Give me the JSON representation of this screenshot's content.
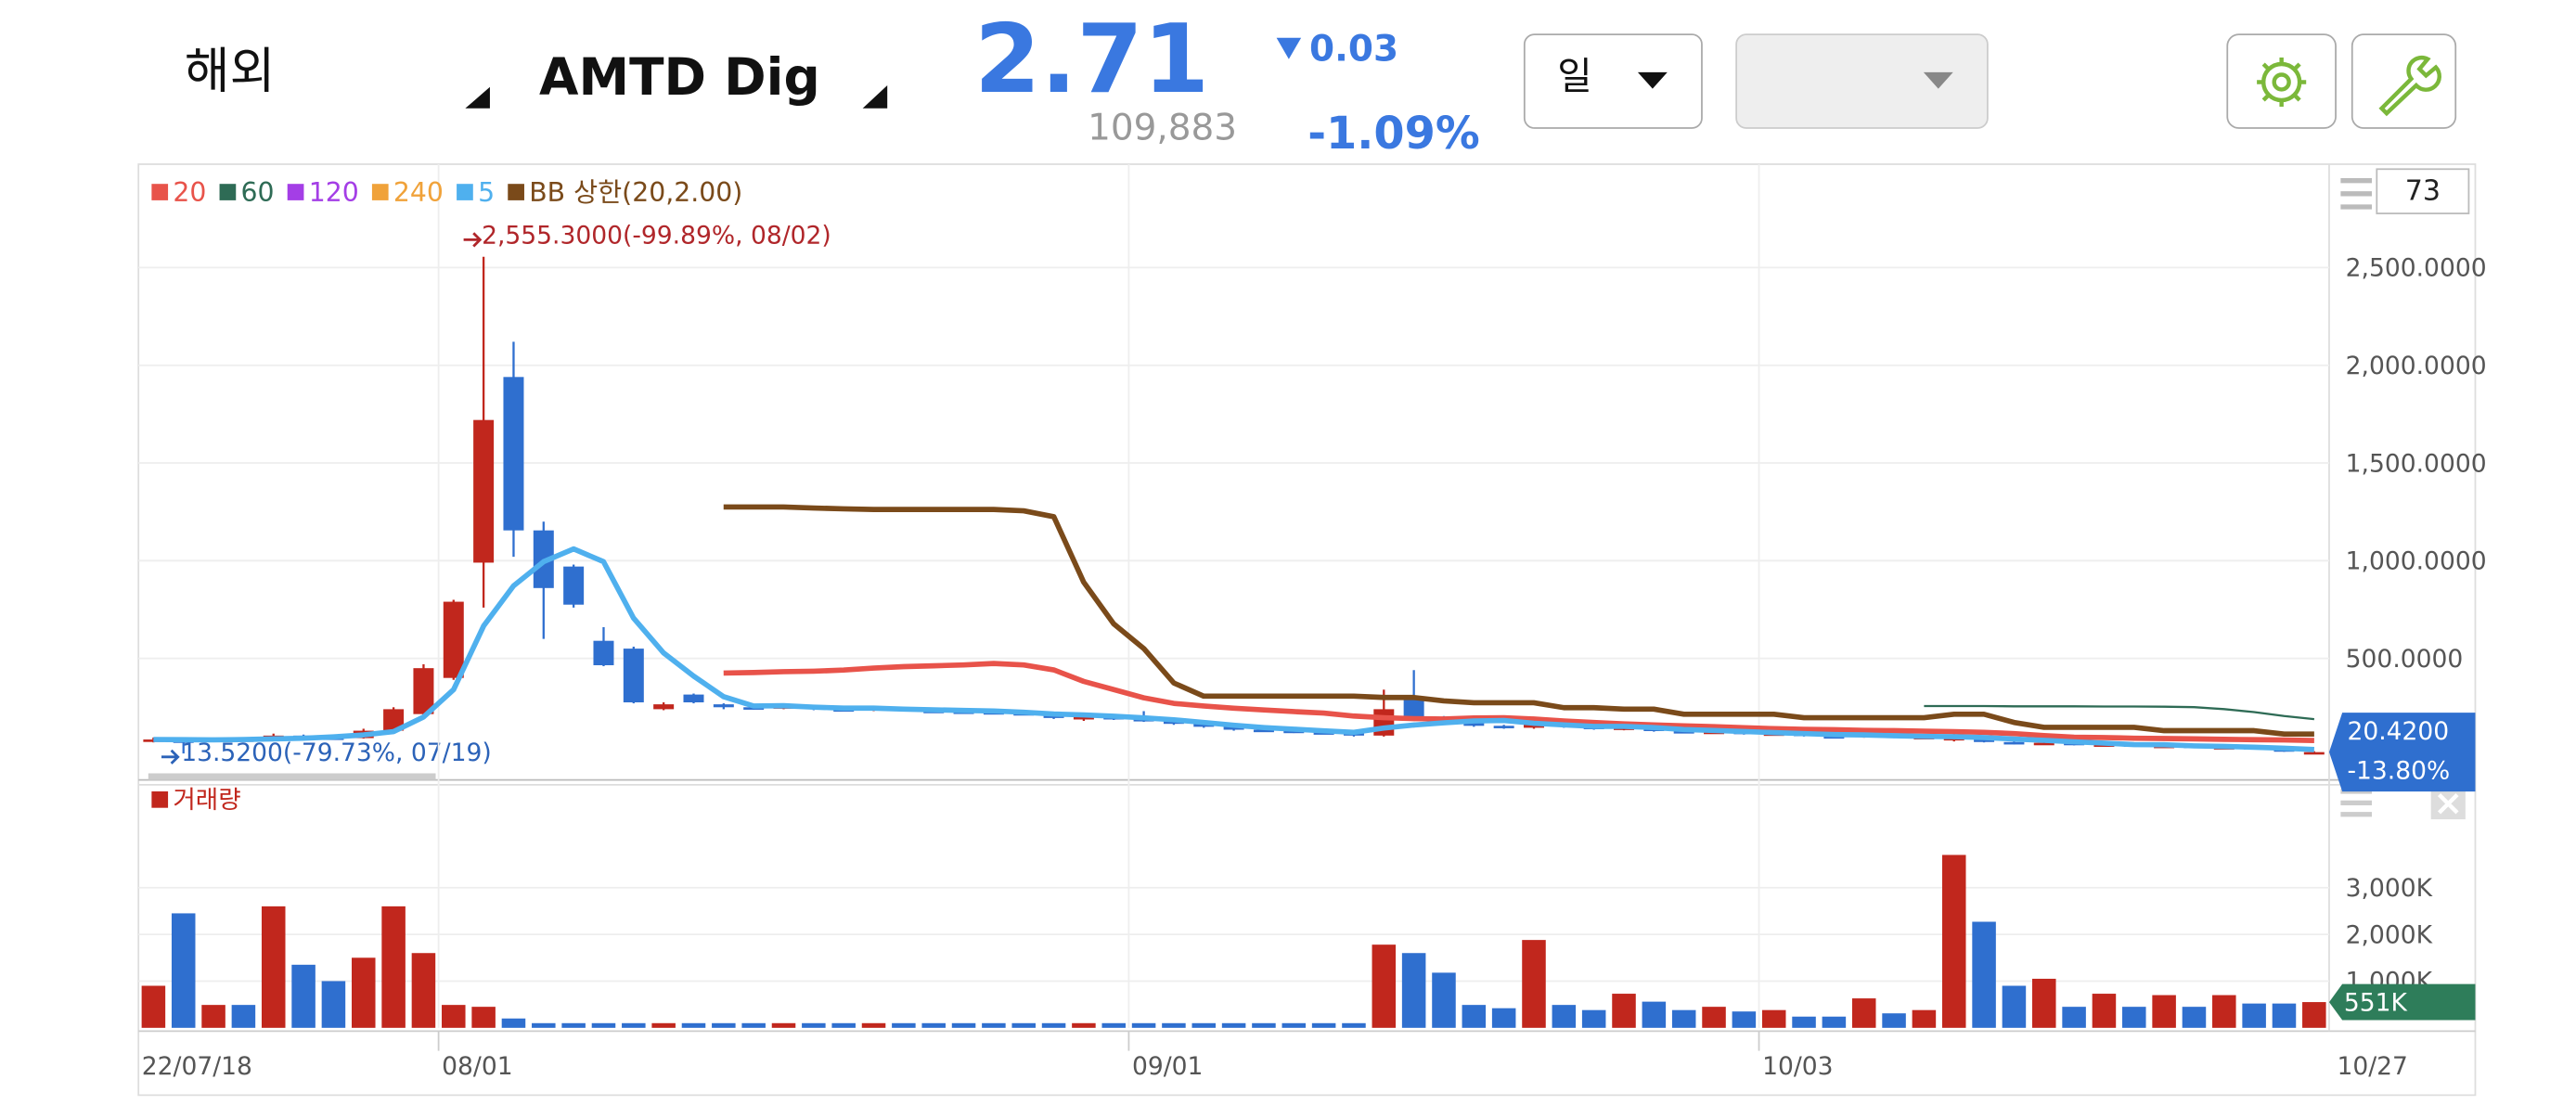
{
  "header": {
    "market": "해외",
    "symbol": "AMTD Dig",
    "price": "2.71",
    "change": "0.03",
    "volume": "109,883",
    "change_rate": "-1.09%",
    "period": "일"
  },
  "chart_data": {
    "type": "candlestick",
    "count_label": "73",
    "categories": [
      "22/07/18",
      null,
      null,
      null,
      null,
      null,
      null,
      null,
      null,
      null,
      "08/01",
      null,
      null,
      null,
      null,
      null,
      null,
      null,
      null,
      null,
      null,
      null,
      null,
      null,
      null,
      null,
      null,
      null,
      null,
      null,
      null,
      null,
      null,
      "09/01",
      null,
      null,
      null,
      null,
      null,
      null,
      null,
      null,
      null,
      null,
      null,
      null,
      null,
      null,
      null,
      null,
      null,
      null,
      null,
      null,
      "10/03",
      null,
      null,
      null,
      null,
      null,
      null,
      null,
      null,
      null,
      null,
      null,
      null,
      null,
      null,
      null,
      null,
      null,
      "10/27"
    ],
    "open": [
      75,
      80,
      78,
      85,
      82,
      105,
      95,
      92,
      130,
      215,
      400,
      990,
      1940,
      1155,
      970,
      590,
      550,
      240,
      315,
      265,
      250,
      245,
      255,
      240,
      235,
      248,
      232,
      228,
      225,
      220,
      215,
      195,
      200,
      190,
      180,
      165,
      150,
      135,
      130,
      122,
      118,
      105,
      300,
      190,
      180,
      155,
      145,
      170,
      150,
      138,
      146,
      128,
      120,
      125,
      112,
      116,
      102,
      97,
      110,
      94,
      80,
      95,
      72,
      62,
      68,
      57,
      60,
      50,
      53,
      42,
      46,
      35,
      20
    ],
    "high": [
      95,
      90,
      95,
      95,
      115,
      110,
      105,
      140,
      250,
      470,
      800,
      2555.3,
      2120,
      1200,
      980,
      660,
      560,
      275,
      320,
      270,
      258,
      262,
      260,
      250,
      252,
      250,
      240,
      236,
      232,
      228,
      220,
      205,
      215,
      230,
      190,
      170,
      155,
      140,
      135,
      128,
      125,
      340,
      440,
      205,
      185,
      160,
      175,
      172,
      152,
      150,
      148,
      130,
      128,
      126,
      118,
      117,
      104,
      112,
      111,
      100,
      120,
      98,
      75,
      70,
      69,
      62,
      61,
      55,
      54,
      48,
      47,
      36,
      25
    ],
    "low": [
      70,
      13.52,
      72,
      80,
      80,
      90,
      88,
      90,
      120,
      205,
      390,
      760,
      1020,
      600,
      760,
      460,
      270,
      235,
      270,
      240,
      238,
      240,
      235,
      228,
      230,
      230,
      222,
      220,
      215,
      210,
      190,
      180,
      185,
      175,
      160,
      145,
      130,
      125,
      118,
      112,
      100,
      100,
      180,
      170,
      150,
      140,
      140,
      145,
      135,
      132,
      125,
      118,
      115,
      110,
      108,
      100,
      95,
      94,
      92,
      88,
      75,
      70,
      60,
      58,
      55,
      52,
      48,
      46,
      40,
      38,
      33,
      22,
      19.5
    ],
    "close": [
      85,
      78,
      85,
      82,
      105,
      95,
      92,
      130,
      240,
      450,
      790,
      1720,
      1155,
      860,
      775,
      465,
      275,
      265,
      275,
      250,
      245,
      255,
      240,
      235,
      248,
      232,
      228,
      225,
      220,
      215,
      195,
      200,
      190,
      180,
      165,
      150,
      135,
      130,
      122,
      118,
      105,
      240,
      190,
      180,
      155,
      145,
      170,
      150,
      138,
      146,
      128,
      120,
      125,
      112,
      116,
      102,
      97,
      110,
      94,
      98,
      95,
      72,
      62,
      68,
      57,
      60,
      50,
      53,
      42,
      46,
      35,
      23.69,
      20.42
    ],
    "up_color": "#c1271d",
    "down_color": "#2f6fcf",
    "series": [
      {
        "name": "20",
        "color": "#e8534a",
        "values": [
          null,
          null,
          null,
          null,
          null,
          null,
          null,
          null,
          null,
          null,
          null,
          null,
          null,
          null,
          null,
          null,
          null,
          null,
          null,
          425,
          428,
          432,
          434,
          440,
          450,
          458,
          462,
          466,
          474,
          466,
          441,
          382,
          340,
          298,
          270,
          256,
          245,
          236,
          228,
          220,
          205,
          197,
          192,
          190,
          195,
          197,
          190,
          180,
          172,
          165,
          160,
          155,
          150,
          145,
          140,
          137,
          135,
          132,
          130,
          128,
          125,
          122,
          115,
          105,
          97,
          95,
          92,
          90,
          88,
          86,
          84,
          82,
          80
        ]
      },
      {
        "name": "60",
        "color": "#2e6b55",
        "values": [
          null,
          null,
          null,
          null,
          null,
          null,
          null,
          null,
          null,
          null,
          null,
          null,
          null,
          null,
          null,
          null,
          null,
          null,
          null,
          null,
          null,
          null,
          null,
          null,
          null,
          null,
          null,
          null,
          null,
          null,
          null,
          null,
          null,
          null,
          null,
          null,
          null,
          null,
          null,
          null,
          null,
          null,
          null,
          null,
          null,
          null,
          null,
          null,
          null,
          null,
          null,
          null,
          null,
          null,
          null,
          null,
          null,
          null,
          null,
          256,
          256,
          256,
          255,
          255,
          255,
          254,
          254,
          253,
          250,
          240,
          225,
          205,
          189
        ]
      },
      {
        "name": "120",
        "color": "#a43ee6",
        "values": [
          null,
          null,
          null,
          null,
          null,
          null,
          null,
          null,
          null,
          null,
          null,
          null,
          null,
          null,
          null,
          null,
          null,
          null,
          null,
          null,
          null,
          null,
          null,
          null,
          null,
          null,
          null,
          null,
          null,
          null,
          null,
          null,
          null,
          null,
          null,
          null,
          null,
          null,
          null,
          null,
          null,
          null,
          null,
          null,
          null,
          null,
          null,
          null,
          null,
          null,
          null,
          null,
          null,
          null,
          null,
          null,
          null,
          null,
          null,
          null,
          null,
          null,
          null,
          null,
          null,
          null,
          null,
          null,
          null,
          null,
          null,
          null,
          null
        ]
      },
      {
        "name": "240",
        "color": "#f0a23a",
        "values": [
          null,
          null,
          null,
          null,
          null,
          null,
          null,
          null,
          null,
          null,
          null,
          null,
          null,
          null,
          null,
          null,
          null,
          null,
          null,
          null,
          null,
          null,
          null,
          null,
          null,
          null,
          null,
          null,
          null,
          null,
          null,
          null,
          null,
          null,
          null,
          null,
          null,
          null,
          null,
          null,
          null,
          null,
          null,
          null,
          null,
          null,
          null,
          null,
          null,
          null,
          null,
          null,
          null,
          null,
          null,
          null,
          null,
          null,
          null,
          null,
          null,
          null,
          null,
          null,
          null,
          null,
          null,
          null,
          null,
          null,
          null,
          null,
          null
        ]
      },
      {
        "name": "5",
        "color": "#4fb0ee",
        "values": [
          85,
          84,
          83,
          85,
          88,
          92,
          98,
          108,
          125,
          200,
          340,
          666,
          871,
          995,
          1060,
          995,
          706,
          528,
          409,
          304,
          256,
          258,
          250,
          245,
          245,
          240,
          237,
          234,
          231,
          224,
          215,
          211,
          204,
          196,
          186,
          172,
          158,
          146,
          138,
          129,
          122,
          144,
          159,
          171,
          180,
          182,
          168,
          160,
          152,
          152,
          146,
          136,
          131,
          126,
          120,
          115,
          110,
          108,
          104,
          101,
          99,
          95,
          87,
          81,
          73,
          66,
          59,
          58,
          52,
          50,
          45,
          40,
          34
        ]
      },
      {
        "name": "BB 상한(20,2.00)",
        "color": "#7a4a1a",
        "values": [
          null,
          null,
          null,
          null,
          null,
          null,
          null,
          null,
          null,
          null,
          null,
          null,
          null,
          null,
          null,
          null,
          null,
          null,
          null,
          1275,
          1275,
          1275,
          1270,
          1265,
          1262,
          1262,
          1262,
          1262,
          1262,
          1255,
          1225,
          890,
          676,
          550,
          374,
          307,
          307,
          307,
          307,
          307,
          307,
          300,
          300,
          282,
          273,
          273,
          273,
          248,
          248,
          240,
          240,
          214,
          214,
          214,
          214,
          197,
          197,
          197,
          197,
          197,
          214,
          214,
          172,
          147,
          147,
          147,
          147,
          130,
          130,
          130,
          130,
          113,
          113
        ]
      }
    ],
    "ylim": [
      -63,
      3029
    ],
    "yticks": [
      {
        "value": 500,
        "label": "500.0000"
      },
      {
        "value": 1000,
        "label": "1,000.0000"
      },
      {
        "value": 1500,
        "label": "1,500.0000"
      },
      {
        "value": 2000,
        "label": "2,000.0000"
      },
      {
        "value": 2500,
        "label": "2,500.0000"
      }
    ],
    "grid": true,
    "annotations": [
      {
        "text": "2,555.3000(-99.89%, 08/02)"
      },
      {
        "text": "13.5200(-79.73%, 07/19)"
      }
    ],
    "last_tag": {
      "value": 20.42,
      "label": "20.4200",
      "change": "-13.80%"
    },
    "volume": {
      "title": "거래량",
      "color": "#c1271d",
      "values": [
        900000,
        2450000,
        490000,
        490000,
        2600000,
        1350000,
        1000000,
        1500000,
        2600000,
        1600000,
        490000,
        450000,
        200000,
        100000,
        100000,
        100000,
        100000,
        100000,
        100000,
        100000,
        100000,
        100000,
        100000,
        100000,
        100000,
        100000,
        100000,
        100000,
        100000,
        100000,
        100000,
        100000,
        100000,
        100000,
        100000,
        100000,
        100000,
        100000,
        100000,
        100000,
        100000,
        1780000,
        1600000,
        1180000,
        490000,
        420000,
        1880000,
        490000,
        380000,
        730000,
        560000,
        380000,
        450000,
        350000,
        380000,
        240000,
        240000,
        630000,
        310000,
        380000,
        3700000,
        2270000,
        900000,
        1050000,
        450000,
        730000,
        450000,
        700000,
        450000,
        700000,
        520000,
        520000,
        551000
      ],
      "ylim": [
        0,
        5200000
      ],
      "yticks": [
        {
          "value": 1000000,
          "label": "1,000K"
        },
        {
          "value": 2000000,
          "label": "2,000K"
        },
        {
          "value": 3000000,
          "label": "3,000K"
        }
      ],
      "last_tag": {
        "value": 551000,
        "label": "551K"
      }
    }
  }
}
